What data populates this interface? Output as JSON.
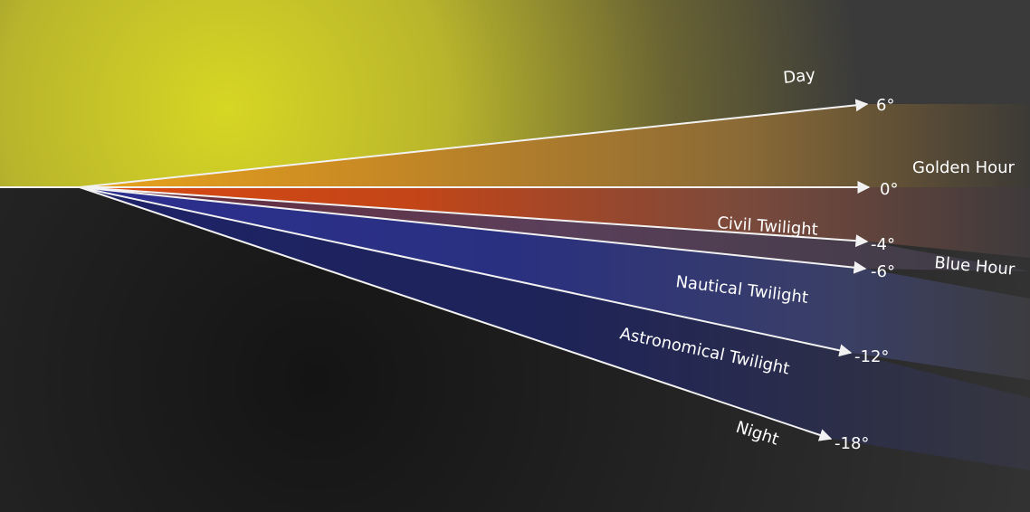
{
  "zones": [
    {
      "id": "day",
      "label": "Day",
      "color": "#d6d326"
    },
    {
      "id": "civil",
      "label": "Civil Twilight",
      "color": "#c0421c"
    },
    {
      "id": "nautical",
      "label": "Nautical Twilight",
      "color": "#2a3080"
    },
    {
      "id": "astronomical",
      "label": "Astronomical Twilight",
      "color": "#1c2256"
    },
    {
      "id": "night",
      "label": "Night",
      "color": "#1c1c1c"
    }
  ],
  "periods": [
    {
      "id": "golden",
      "label": "Golden Hour"
    },
    {
      "id": "blue",
      "label": "Blue Hour"
    }
  ],
  "angles": [
    {
      "id": "a6",
      "label": "6°"
    },
    {
      "id": "a0",
      "label": "0°"
    },
    {
      "id": "am4",
      "label": "-4°"
    },
    {
      "id": "am6",
      "label": "-6°"
    },
    {
      "id": "am12",
      "label": "-12°"
    },
    {
      "id": "am18",
      "label": "-18°"
    }
  ],
  "colors": {
    "sky": "#d6d326",
    "ground": "#1a1a1a",
    "background_right": "#3a3a3a",
    "line": "#f2f2f2"
  }
}
